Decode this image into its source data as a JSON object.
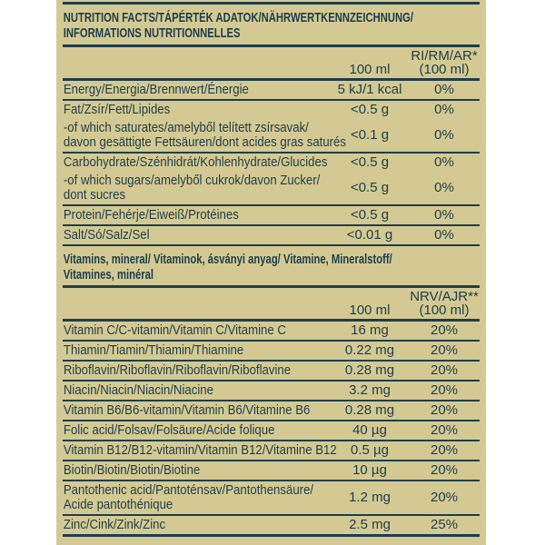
{
  "colors": {
    "page_bg": "#ffffff",
    "label_bg": "#d4c992",
    "ink": "#1d3e4e"
  },
  "title": "NUTRITION FACTS/TÁPÉRTÉK ADATOK/NÄHRWERTKENNZEICHNUNG/\nINFORMATIONS NUTRITIONNELLES",
  "main_table": {
    "column_headers": {
      "amount": "100 ml",
      "reference": "RI/RM/AR*\n(100 ml)"
    },
    "rows": [
      {
        "name": "Energy/Energia/Brennwert/Énergie",
        "amount": "5 kJ/1 kcal",
        "reference": "0%"
      },
      {
        "name": "Fat/Zsír/Fett/Lipides",
        "amount": "<0.5 g",
        "reference": "0%",
        "divider_below": false
      },
      {
        "name": "-of which saturates/amelyből telített zsírsavak/\ndavon gesättigte Fettsäuren/dont acides gras saturés",
        "amount": "<0.1 g",
        "reference": "0%"
      },
      {
        "name": "Carbohydrate/Szénhidrát/Kohlenhydrate/Glucides",
        "amount": "<0.5 g",
        "reference": "0%",
        "divider_below": false
      },
      {
        "name": "-of which sugars/amelyből cukrok/davon Zucker/\ndont sucres",
        "amount": "<0.5 g",
        "reference": "0%"
      },
      {
        "name": "Protein/Fehérje/Eiweiß/Protéines",
        "amount": "<0.5 g",
        "reference": "0%"
      },
      {
        "name": "Salt/Só/Salz/Sel",
        "amount": "<0.01 g",
        "reference": "0%"
      }
    ]
  },
  "vitamins_section": {
    "heading": "Vitamins, mineral/ Vitaminok, ásványi anyag/ Vitamine, Mineralstoff/\nVitamines, minéral",
    "column_headers": {
      "amount": "100 ml",
      "reference": "NRV/AJR**\n(100 ml)"
    },
    "rows": [
      {
        "name": "Vitamin C/C-vitamin/Vitamin C/Vitamine C",
        "amount": "16 mg",
        "reference": "20%"
      },
      {
        "name": "Thiamin/Tiamin/Thiamin/Thiamine",
        "amount": "0.22 mg",
        "reference": "20%"
      },
      {
        "name": "Riboflavin/Riboflavin/Riboflavin/Riboflavine",
        "amount": "0.28 mg",
        "reference": "20%"
      },
      {
        "name": "Niacin/Niacin/Niacin/Niacine",
        "amount": "3.2 mg",
        "reference": "20%"
      },
      {
        "name": "Vitamin B6/B6-vitamin/Vitamin B6/Vitamine B6",
        "amount": "0.28 mg",
        "reference": "20%"
      },
      {
        "name": "Folic acid/Folsav/Folsäure/Acide folique",
        "amount": "40 µg",
        "reference": "20%"
      },
      {
        "name": "Vitamin B12/B12-vitamin/Vitamin B12/Vitamine B12",
        "amount": "0.5 µg",
        "reference": "20%"
      },
      {
        "name": "Biotin/Biotin/Biotin/Biotine",
        "amount": "10 µg",
        "reference": "20%"
      },
      {
        "name": "Pantothenic acid/Pantoténsav/Pantothensäure/\nAcide pantothénique",
        "amount": "1.2 mg",
        "reference": "20%"
      },
      {
        "name": "Zinc/Cink/Zink/Zinc",
        "amount": "2.5 mg",
        "reference": "25%"
      }
    ]
  }
}
